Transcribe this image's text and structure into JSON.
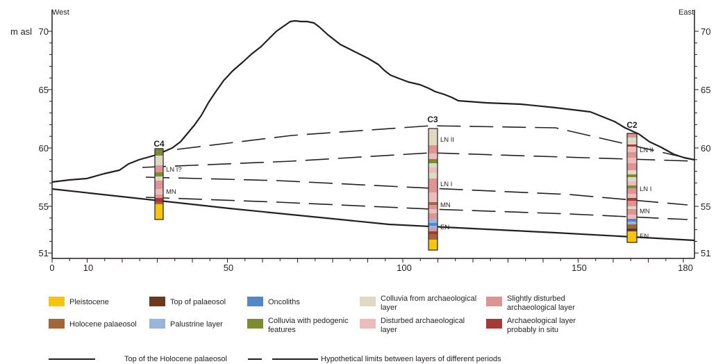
{
  "header": {
    "west": "West",
    "east": "East",
    "y_unit": "m asl"
  },
  "y_ticks": {
    "left": [
      "70",
      "65",
      "60",
      "55",
      "51"
    ],
    "right": [
      "70",
      "65",
      "60",
      "55",
      "51"
    ]
  },
  "x_ticks": [
    "0",
    "10",
    "50",
    "100",
    "150",
    "180"
  ],
  "cores": [
    {
      "name": "C4",
      "layers": [
        "LN I?",
        "MN"
      ]
    },
    {
      "name": "C3",
      "layers": [
        "LN II",
        "LN I",
        "MN",
        "EN"
      ]
    },
    {
      "name": "C2",
      "layers": [
        "LN II",
        "LN I",
        "MN",
        "EN"
      ]
    }
  ],
  "legend": {
    "items": [
      {
        "label": "Pleistocene",
        "color": "#f6c513"
      },
      {
        "label": "Top of palaeosol",
        "color": "#6b3a1e"
      },
      {
        "label": "Oncoliths",
        "color": "#5587c4"
      },
      {
        "label": "Colluvia from archaeological layer",
        "color": "#ddd9c3"
      },
      {
        "label": "Slightly disturbed archaeological layer",
        "color": "#dd9494"
      },
      {
        "label": "Holocene palaeosol",
        "color": "#a0683a"
      },
      {
        "label": "Palustrine layer",
        "color": "#9ab5dc"
      },
      {
        "label": "Colluvia with pedogenic features",
        "color": "#7f8a35"
      },
      {
        "label": "Disturbed archaeological layer",
        "color": "#ebbcbc"
      },
      {
        "label": "Archaeological layer probably in situ",
        "color": "#a43a3a"
      }
    ],
    "lines": [
      {
        "label": "Top of the Holocene palaeosol",
        "style": "solid"
      },
      {
        "label": "Hypothetical limits between layers of different periods",
        "style": "dashed"
      }
    ]
  }
}
